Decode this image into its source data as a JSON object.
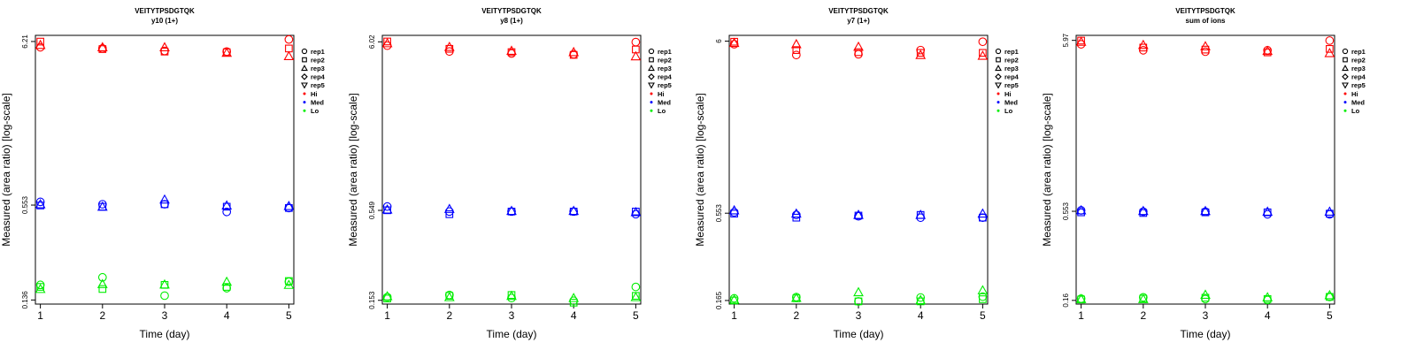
{
  "colors": {
    "Hi": "#ff0000",
    "Med": "#0000ff",
    "Lo": "#00ee00",
    "axis": "#000000"
  },
  "legend": {
    "placement": "right-outside",
    "reps": [
      {
        "label": "rep1",
        "shape": "circle-icon"
      },
      {
        "label": "rep2",
        "shape": "square-icon"
      },
      {
        "label": "rep3",
        "shape": "triangle-up-icon"
      },
      {
        "label": "rep4",
        "shape": "diamond-icon"
      },
      {
        "label": "rep5",
        "shape": "triangle-down-icon"
      }
    ],
    "levels": [
      "Hi",
      "Med",
      "Lo"
    ]
  },
  "chart_data": [
    {
      "type": "scatter",
      "title": "VEITYTPSDGTQK",
      "subtitle": "y10 (1+)",
      "xlabel": "Time (day)",
      "ylabel": "Measured (area ratio) [log-scale]",
      "yscale": "log",
      "x": [
        1,
        2,
        3,
        4,
        5
      ],
      "xlim": [
        0.92,
        5.08
      ],
      "ylim": [
        0.128,
        6.8
      ],
      "yticks": [
        0.136,
        0.553,
        6.21
      ],
      "ytick_labels": [
        "0.136",
        "0.553",
        "6.21"
      ],
      "grid": false,
      "series": [
        {
          "level": "Hi",
          "rep": "rep1",
          "values": [
            5.7,
            5.6,
            5.4,
            5.35,
            6.4
          ]
        },
        {
          "level": "Hi",
          "rep": "rep2",
          "values": [
            6.2,
            5.55,
            5.35,
            5.3,
            5.6
          ]
        },
        {
          "level": "Hi",
          "rep": "rep3",
          "values": [
            5.9,
            5.7,
            5.7,
            5.25,
            5.0
          ]
        },
        {
          "level": "Med",
          "rep": "rep1",
          "values": [
            0.58,
            0.56,
            0.56,
            0.5,
            0.53
          ]
        },
        {
          "level": "Med",
          "rep": "rep2",
          "values": [
            0.55,
            0.54,
            0.56,
            0.54,
            0.53
          ]
        },
        {
          "level": "Med",
          "rep": "rep3",
          "values": [
            0.56,
            0.54,
            0.6,
            0.55,
            0.545
          ]
        },
        {
          "level": "Lo",
          "rep": "rep1",
          "values": [
            0.17,
            0.19,
            0.145,
            0.162,
            0.178
          ]
        },
        {
          "level": "Lo",
          "rep": "rep2",
          "values": [
            0.165,
            0.16,
            0.17,
            0.165,
            0.18
          ]
        },
        {
          "level": "Lo",
          "rep": "rep3",
          "values": [
            0.16,
            0.172,
            0.171,
            0.178,
            0.17
          ]
        }
      ]
    },
    {
      "type": "scatter",
      "title": "VEITYTPSDGTQK",
      "subtitle": "y8 (1+)",
      "xlabel": "Time (day)",
      "ylabel": "Measured (area ratio) [log-scale]",
      "yscale": "log",
      "x": [
        1,
        2,
        3,
        4,
        5
      ],
      "xlim": [
        0.92,
        5.08
      ],
      "ylim": [
        0.145,
        6.6
      ],
      "yticks": [
        0.153,
        0.549,
        6.02
      ],
      "ytick_labels": [
        "0.153",
        "0.549",
        "6.02"
      ],
      "grid": false,
      "series": [
        {
          "level": "Hi",
          "rep": "rep1",
          "values": [
            5.7,
            5.25,
            5.1,
            5.05,
            6.0
          ]
        },
        {
          "level": "Hi",
          "rep": "rep2",
          "values": [
            6.05,
            5.45,
            5.2,
            5.0,
            5.4
          ]
        },
        {
          "level": "Hi",
          "rep": "rep3",
          "values": [
            5.9,
            5.6,
            5.3,
            5.2,
            4.9
          ]
        },
        {
          "level": "Med",
          "rep": "rep1",
          "values": [
            0.58,
            0.54,
            0.54,
            0.54,
            0.52
          ]
        },
        {
          "level": "Med",
          "rep": "rep2",
          "values": [
            0.55,
            0.52,
            0.54,
            0.54,
            0.54
          ]
        },
        {
          "level": "Med",
          "rep": "rep3",
          "values": [
            0.555,
            0.56,
            0.545,
            0.545,
            0.535
          ]
        },
        {
          "level": "Lo",
          "rep": "rep1",
          "values": [
            0.16,
            0.165,
            0.158,
            0.152,
            0.185
          ]
        },
        {
          "level": "Lo",
          "rep": "rep2",
          "values": [
            0.157,
            0.163,
            0.165,
            0.148,
            0.163
          ]
        },
        {
          "level": "Lo",
          "rep": "rep3",
          "values": [
            0.162,
            0.16,
            0.163,
            0.158,
            0.16
          ]
        }
      ]
    },
    {
      "type": "scatter",
      "title": "VEITYTPSDGTQK",
      "subtitle": "y7 (1+)",
      "xlabel": "Time (day)",
      "ylabel": "Measured (area ratio) [log-scale]",
      "yscale": "log",
      "x": [
        1,
        2,
        3,
        4,
        5
      ],
      "xlim": [
        0.92,
        5.08
      ],
      "ylim": [
        0.157,
        6.5
      ],
      "yticks": [
        0.165,
        0.553,
        6.0
      ],
      "ytick_labels": [
        "0.165",
        "0.553",
        "6"
      ],
      "grid": false,
      "series": [
        {
          "level": "Hi",
          "rep": "rep1",
          "values": [
            5.75,
            4.95,
            5.0,
            5.3,
            5.95
          ]
        },
        {
          "level": "Hi",
          "rep": "rep2",
          "values": [
            5.95,
            5.3,
            5.15,
            5.1,
            5.1
          ]
        },
        {
          "level": "Hi",
          "rep": "rep3",
          "values": [
            5.85,
            5.75,
            5.55,
            4.95,
            4.9
          ]
        },
        {
          "level": "Med",
          "rep": "rep1",
          "values": [
            0.56,
            0.54,
            0.53,
            0.52,
            0.52
          ]
        },
        {
          "level": "Med",
          "rep": "rep2",
          "values": [
            0.55,
            0.52,
            0.535,
            0.54,
            0.52
          ]
        },
        {
          "level": "Med",
          "rep": "rep3",
          "values": [
            0.575,
            0.55,
            0.54,
            0.54,
            0.55
          ]
        },
        {
          "level": "Lo",
          "rep": "rep1",
          "values": [
            0.17,
            0.173,
            0.163,
            0.172,
            0.174
          ]
        },
        {
          "level": "Lo",
          "rep": "rep2",
          "values": [
            0.165,
            0.17,
            0.163,
            0.163,
            0.168
          ]
        },
        {
          "level": "Lo",
          "rep": "rep3",
          "values": [
            0.167,
            0.171,
            0.185,
            0.166,
            0.19
          ]
        }
      ]
    },
    {
      "type": "scatter",
      "title": "VEITYTPSDGTQK",
      "subtitle": "sum of ions",
      "xlabel": "Time (day)",
      "ylabel": "Measured (area ratio) [log-scale]",
      "yscale": "log",
      "x": [
        1,
        2,
        3,
        4,
        5
      ],
      "xlim": [
        0.92,
        5.08
      ],
      "ylim": [
        0.152,
        6.4
      ],
      "yticks": [
        0.16,
        0.553,
        5.97
      ],
      "ytick_labels": [
        "0.16",
        "0.553",
        "5.97"
      ],
      "grid": false,
      "series": [
        {
          "level": "Hi",
          "rep": "rep1",
          "values": [
            5.65,
            5.2,
            5.1,
            5.2,
            5.95
          ]
        },
        {
          "level": "Hi",
          "rep": "rep2",
          "values": [
            5.95,
            5.4,
            5.25,
            5.05,
            5.3
          ]
        },
        {
          "level": "Hi",
          "rep": "rep3",
          "values": [
            5.85,
            5.6,
            5.5,
            5.15,
            5.0
          ]
        },
        {
          "level": "Med",
          "rep": "rep1",
          "values": [
            0.56,
            0.55,
            0.55,
            0.53,
            0.53
          ]
        },
        {
          "level": "Med",
          "rep": "rep2",
          "values": [
            0.545,
            0.54,
            0.545,
            0.545,
            0.535
          ]
        },
        {
          "level": "Med",
          "rep": "rep3",
          "values": [
            0.56,
            0.555,
            0.555,
            0.55,
            0.55
          ]
        },
        {
          "level": "Lo",
          "rep": "rep1",
          "values": [
            0.164,
            0.167,
            0.163,
            0.161,
            0.168
          ]
        },
        {
          "level": "Lo",
          "rep": "rep2",
          "values": [
            0.162,
            0.164,
            0.166,
            0.163,
            0.168
          ]
        },
        {
          "level": "Lo",
          "rep": "rep3",
          "values": [
            0.163,
            0.163,
            0.173,
            0.167,
            0.172
          ]
        }
      ]
    }
  ]
}
